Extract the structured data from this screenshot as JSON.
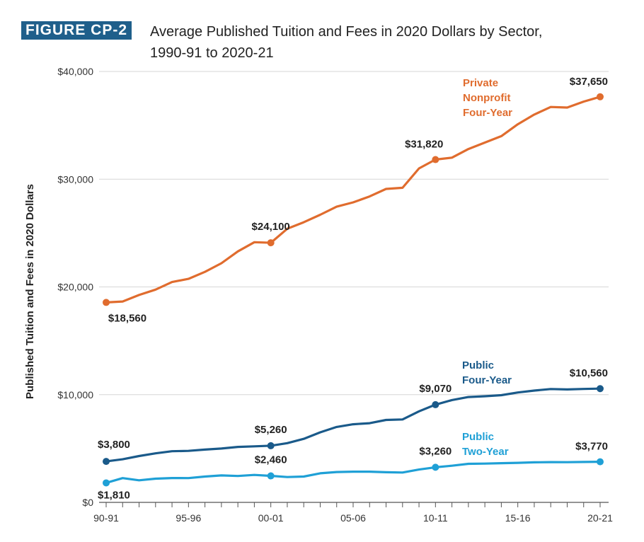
{
  "figure": {
    "label": "FIGURE CP-2",
    "title_line1": "Average Published Tuition and Fees in 2020 Dollars by Sector,",
    "title_line2": "1990-91 to 2020-21"
  },
  "chart_data": {
    "type": "line",
    "ylabel": "Published Tuition and Fees in 2020 Dollars",
    "xlabel": "",
    "ylim": [
      0,
      40000
    ],
    "yticks": [
      0,
      10000,
      20000,
      30000,
      40000
    ],
    "ytick_labels": [
      "$0",
      "$10,000",
      "$20,000",
      "$30,000",
      "$40,000"
    ],
    "x": [
      "90-91",
      "91-92",
      "92-93",
      "93-94",
      "94-95",
      "95-96",
      "96-97",
      "97-98",
      "98-99",
      "99-00",
      "00-01",
      "01-02",
      "02-03",
      "03-04",
      "04-05",
      "05-06",
      "06-07",
      "07-08",
      "08-09",
      "09-10",
      "10-11",
      "11-12",
      "12-13",
      "13-14",
      "14-15",
      "15-16",
      "16-17",
      "17-18",
      "18-19",
      "19-20",
      "20-21"
    ],
    "xtick_labels": [
      "90-91",
      "95-96",
      "00-01",
      "05-06",
      "10-11",
      "15-16",
      "20-21"
    ],
    "grid": "horizontal",
    "series": [
      {
        "name_lines": [
          "Private",
          "Nonprofit",
          "Four-Year"
        ],
        "color": "#e06c2e",
        "values": [
          18560,
          18650,
          19250,
          19750,
          20450,
          20750,
          21400,
          22200,
          23300,
          24150,
          24100,
          25400,
          26000,
          26700,
          27450,
          27850,
          28400,
          29100,
          29200,
          31000,
          31820,
          32000,
          32800,
          33400,
          34000,
          35100,
          36000,
          36700,
          36650,
          37200,
          37650
        ],
        "labels": [
          {
            "index": 0,
            "text": "$18,560",
            "pos": "below"
          },
          {
            "index": 10,
            "text": "$24,100",
            "pos": "above"
          },
          {
            "index": 20,
            "text": "$31,820",
            "pos": "above-left"
          },
          {
            "index": 30,
            "text": "$37,650",
            "pos": "above-left"
          }
        ]
      },
      {
        "name_lines": [
          "Public",
          "Four-Year"
        ],
        "color": "#1a5a8a",
        "values": [
          3800,
          4000,
          4300,
          4550,
          4750,
          4780,
          4900,
          5000,
          5150,
          5200,
          5260,
          5500,
          5900,
          6500,
          7000,
          7250,
          7350,
          7650,
          7700,
          8450,
          9070,
          9500,
          9780,
          9850,
          9950,
          10200,
          10380,
          10520,
          10480,
          10530,
          10560
        ],
        "labels": [
          {
            "index": 0,
            "text": "$3,800",
            "pos": "above-right"
          },
          {
            "index": 10,
            "text": "$5,260",
            "pos": "above"
          },
          {
            "index": 20,
            "text": "$9,070",
            "pos": "above"
          },
          {
            "index": 30,
            "text": "$10,560",
            "pos": "above-left"
          }
        ]
      },
      {
        "name_lines": [
          "Public",
          "Two-Year"
        ],
        "color": "#1fa0d6",
        "values": [
          1810,
          2250,
          2050,
          2200,
          2260,
          2250,
          2400,
          2500,
          2450,
          2550,
          2460,
          2350,
          2400,
          2700,
          2820,
          2850,
          2850,
          2800,
          2770,
          3050,
          3260,
          3400,
          3580,
          3600,
          3640,
          3670,
          3720,
          3740,
          3730,
          3750,
          3770
        ],
        "labels": [
          {
            "index": 0,
            "text": "$1,810",
            "pos": "below-right"
          },
          {
            "index": 10,
            "text": "$2,460",
            "pos": "above"
          },
          {
            "index": 20,
            "text": "$3,260",
            "pos": "above"
          },
          {
            "index": 30,
            "text": "$3,770",
            "pos": "above-left"
          }
        ]
      }
    ]
  }
}
